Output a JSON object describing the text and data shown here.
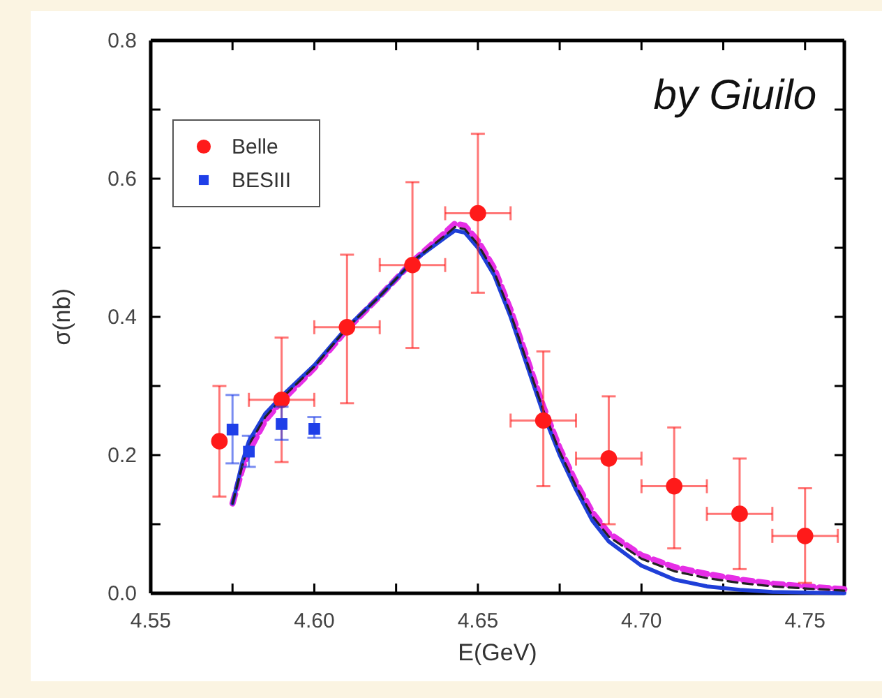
{
  "chart_data": {
    "type": "scatter",
    "xlabel": "E(GeV)",
    "ylabel": "σ(nb)",
    "xlim": [
      4.55,
      4.762
    ],
    "ylim": [
      0,
      0.8
    ],
    "xticks": [
      {
        "value": 4.55,
        "label": "4.55"
      },
      {
        "value": 4.575,
        "label": null
      },
      {
        "value": 4.6,
        "label": "4.60"
      },
      {
        "value": 4.625,
        "label": null
      },
      {
        "value": 4.65,
        "label": "4.65"
      },
      {
        "value": 4.675,
        "label": null
      },
      {
        "value": 4.7,
        "label": "4.70"
      },
      {
        "value": 4.725,
        "label": null
      },
      {
        "value": 4.75,
        "label": "4.75"
      }
    ],
    "yticks": [
      {
        "value": 0,
        "label": "0.0"
      },
      {
        "value": 0.1,
        "label": null
      },
      0.2,
      {
        "value": 0.3,
        "label": null
      },
      0.4,
      {
        "value": 0.5,
        "label": null
      },
      0.6,
      {
        "value": 0.7,
        "label": null
      },
      0.8
    ],
    "legend": "top left",
    "annotations": [
      "by Giuilo"
    ],
    "series": [
      {
        "type": "line",
        "color": "#1f3fd8",
        "line_style": "solid",
        "x": [
          4.575,
          4.578,
          4.58,
          4.585,
          4.59,
          4.6,
          4.61,
          4.62,
          4.63,
          4.64,
          4.643,
          4.646,
          4.65,
          4.655,
          4.66,
          4.665,
          4.67,
          4.675,
          4.68,
          4.685,
          4.69,
          4.7,
          4.71,
          4.72,
          4.73,
          4.74,
          4.762
        ],
        "values": [
          0.13,
          0.19,
          0.22,
          0.26,
          0.285,
          0.33,
          0.385,
          0.43,
          0.48,
          0.515,
          0.525,
          0.522,
          0.5,
          0.46,
          0.4,
          0.33,
          0.26,
          0.2,
          0.15,
          0.105,
          0.075,
          0.04,
          0.02,
          0.01,
          0.005,
          0.002,
          0
        ]
      },
      {
        "type": "line",
        "color": "#222222",
        "line_style": "dashed",
        "x": [
          4.575,
          4.578,
          4.58,
          4.585,
          4.59,
          4.6,
          4.61,
          4.62,
          4.63,
          4.64,
          4.643,
          4.646,
          4.65,
          4.655,
          4.66,
          4.665,
          4.67,
          4.675,
          4.68,
          4.685,
          4.69,
          4.7,
          4.71,
          4.72,
          4.73,
          4.74,
          4.75,
          4.762
        ],
        "values": [
          0.13,
          0.185,
          0.215,
          0.255,
          0.282,
          0.328,
          0.384,
          0.43,
          0.48,
          0.518,
          0.53,
          0.527,
          0.505,
          0.465,
          0.405,
          0.335,
          0.265,
          0.205,
          0.155,
          0.112,
          0.082,
          0.05,
          0.032,
          0.022,
          0.015,
          0.01,
          0.007,
          0.004
        ]
      },
      {
        "type": "line",
        "color": "#e62ee6",
        "line_style": "dashed",
        "x": [
          4.575,
          4.578,
          4.58,
          4.585,
          4.59,
          4.6,
          4.61,
          4.62,
          4.63,
          4.64,
          4.643,
          4.646,
          4.65,
          4.655,
          4.66,
          4.665,
          4.67,
          4.675,
          4.68,
          4.685,
          4.69,
          4.7,
          4.71,
          4.72,
          4.73,
          4.74,
          4.75,
          4.762
        ],
        "values": [
          0.13,
          0.18,
          0.205,
          0.25,
          0.278,
          0.326,
          0.382,
          0.43,
          0.48,
          0.522,
          0.535,
          0.532,
          0.51,
          0.47,
          0.41,
          0.34,
          0.27,
          0.21,
          0.16,
          0.117,
          0.087,
          0.055,
          0.038,
          0.028,
          0.02,
          0.014,
          0.01,
          0.006
        ]
      },
      {
        "name": "Belle",
        "type": "scatter",
        "marker": "circle",
        "color": "#ff1a1a",
        "x": [
          4.571,
          4.59,
          4.61,
          4.63,
          4.65,
          4.67,
          4.69,
          4.71,
          4.73,
          4.75
        ],
        "values": [
          0.22,
          0.28,
          0.385,
          0.475,
          0.55,
          0.25,
          0.195,
          0.155,
          0.115,
          0.083
        ],
        "errors": [
          [
            0.14,
            0.3
          ],
          [
            0.19,
            0.37
          ],
          [
            0.275,
            0.49
          ],
          [
            0.355,
            0.595
          ],
          [
            0.435,
            0.665
          ],
          [
            0.155,
            0.35
          ],
          [
            0.1,
            0.285
          ],
          [
            0.065,
            0.24
          ],
          [
            0.035,
            0.195
          ],
          [
            0.015,
            0.152
          ]
        ],
        "xerrors": [
          null,
          0.01,
          0.01,
          0.01,
          0.01,
          0.01,
          0.01,
          0.01,
          0.01,
          0.01
        ]
      },
      {
        "name": "BESIII",
        "type": "scatter",
        "marker": "square",
        "color": "#1f3fe8",
        "x": [
          4.575,
          4.58,
          4.59,
          4.6
        ],
        "values": [
          0.237,
          0.205,
          0.245,
          0.238
        ],
        "errors": [
          [
            0.188,
            0.287
          ],
          [
            0.183,
            0.228
          ],
          [
            0.222,
            0.27
          ],
          [
            0.225,
            0.255
          ]
        ]
      }
    ]
  }
}
